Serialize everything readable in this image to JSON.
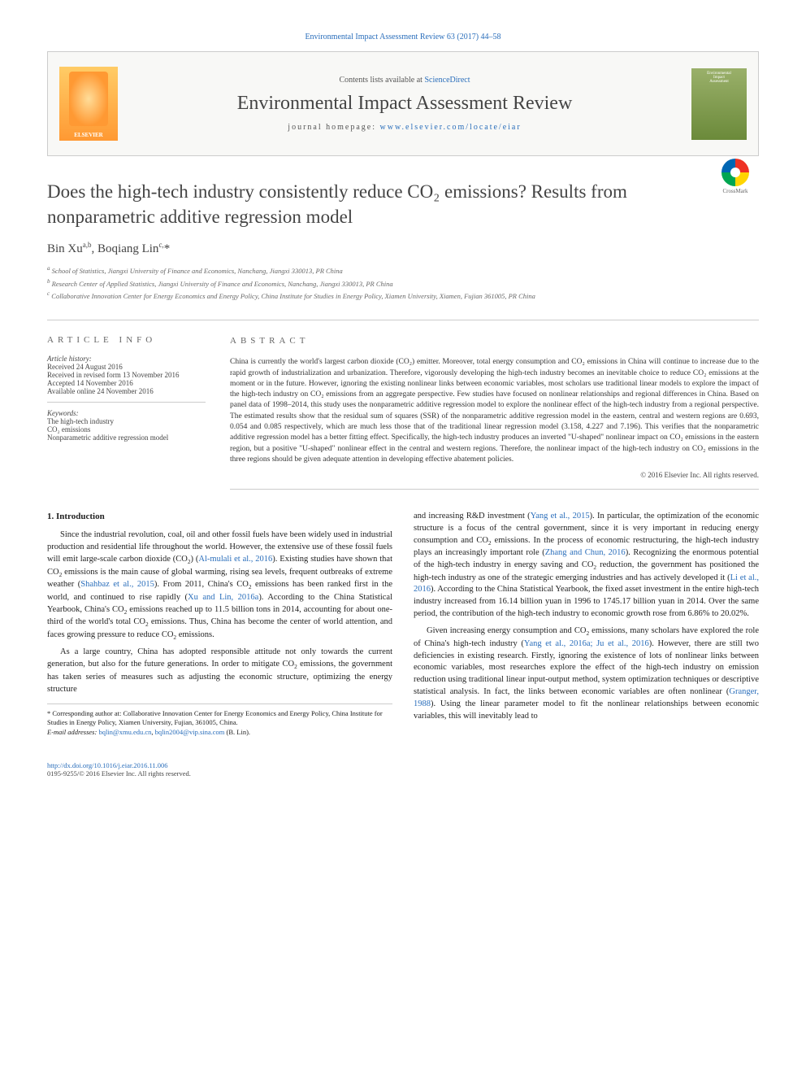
{
  "top_link": "Environmental Impact Assessment Review 63 (2017) 44–58",
  "header": {
    "contents_prefix": "Contents lists available at ",
    "contents_link": "ScienceDirect",
    "journal_name": "Environmental Impact Assessment Review",
    "homepage_prefix": "journal homepage: ",
    "homepage_link": "www.elsevier.com/locate/eiar",
    "publisher_logo_label": "ELSEVIER",
    "cover_line1": "Environmental",
    "cover_line2": "Impact",
    "cover_line3": "Assessment"
  },
  "article": {
    "title": "Does the high-tech industry consistently reduce CO₂ emissions? Results from nonparametric additive regression model",
    "authors_html": "Bin Xu",
    "author1_sup": "a,b",
    "author2": ", Boqiang Lin",
    "author2_sup": "c,",
    "author2_star": "*",
    "affiliations": {
      "a": "School of Statistics, Jiangxi University of Finance and Economics, Nanchang, Jiangxi 330013, PR China",
      "b": "Research Center of Applied Statistics, Jiangxi University of Finance and Economics, Nanchang, Jiangxi 330013, PR China",
      "c": "Collaborative Innovation Center for Energy Economics and Energy Policy, China Institute for Studies in Energy Policy, Xiamen University, Xiamen, Fujian 361005, PR China"
    }
  },
  "info": {
    "heading": "article info",
    "history_label": "Article history:",
    "received": "Received 24 August 2016",
    "revised": "Received in revised form 13 November 2016",
    "accepted": "Accepted 14 November 2016",
    "online": "Available online 24 November 2016",
    "keywords_label": "Keywords:",
    "kw1": "The high-tech industry",
    "kw2": "CO₂ emissions",
    "kw3": "Nonparametric additive regression model"
  },
  "abstract": {
    "heading": "abstract",
    "text": "China is currently the world's largest carbon dioxide (CO₂) emitter. Moreover, total energy consumption and CO₂ emissions in China will continue to increase due to the rapid growth of industrialization and urbanization. Therefore, vigorously developing the high-tech industry becomes an inevitable choice to reduce CO₂ emissions at the moment or in the future. However, ignoring the existing nonlinear links between economic variables, most scholars use traditional linear models to explore the impact of the high-tech industry on CO₂ emissions from an aggregate perspective. Few studies have focused on nonlinear relationships and regional differences in China. Based on panel data of 1998–2014, this study uses the nonparametric additive regression model to explore the nonlinear effect of the high-tech industry from a regional perspective. The estimated results show that the residual sum of squares (SSR) of the nonparametric additive regression model in the eastern, central and western regions are 0.693, 0.054 and 0.085 respectively, which are much less those that of the traditional linear regression model (3.158, 4.227 and 7.196). This verifies that the nonparametric additive regression model has a better fitting effect. Specifically, the high-tech industry produces an inverted \"U-shaped\" nonlinear impact on CO₂ emissions in the eastern region, but a positive \"U-shaped\" nonlinear effect in the central and western regions. Therefore, the nonlinear impact of the high-tech industry on CO₂ emissions in the three regions should be given adequate attention in developing effective abatement policies.",
    "copyright": "© 2016 Elsevier Inc. All rights reserved."
  },
  "body": {
    "section_heading": "1. Introduction",
    "left_p1": "Since the industrial revolution, coal, oil and other fossil fuels have been widely used in industrial production and residential life throughout the world. However, the extensive use of these fossil fuels will emit large-scale carbon dioxide (CO₂) (Al-mulali et al., 2016). Existing studies have shown that CO₂ emissions is the main cause of global warming, rising sea levels, frequent outbreaks of extreme weather (Shahbaz et al., 2015). From 2011, China's CO₂ emissions has been ranked first in the world, and continued to rise rapidly (Xu and Lin, 2016a). According to the China Statistical Yearbook, China's CO₂ emissions reached up to 11.5 billion tons in 2014, accounting for about one-third of the world's total CO₂ emissions. Thus, China has become the center of world attention, and faces growing pressure to reduce CO₂ emissions.",
    "left_p2": "As a large country, China has adopted responsible attitude not only towards the current generation, but also for the future generations. In order to mitigate CO₂ emissions, the government has taken series of measures such as adjusting the economic structure, optimizing the energy structure",
    "right_p1": "and increasing R&D investment (Yang et al., 2015). In particular, the optimization of the economic structure is a focus of the central government, since it is very important in reducing energy consumption and CO₂ emissions. In the process of economic restructuring, the high-tech industry plays an increasingly important role (Zhang and Chun, 2016). Recognizing the enormous potential of the high-tech industry in energy saving and CO₂ reduction, the government has positioned the high-tech industry as one of the strategic emerging industries and has actively developed it (Li et al., 2016). According to the China Statistical Yearbook, the fixed asset investment in the entire high-tech industry increased from 16.14 billion yuan in 1996 to 1745.17 billion yuan in 2014. Over the same period, the contribution of the high-tech industry to economic growth rose from 6.86% to 20.02%.",
    "right_p2": "Given increasing energy consumption and CO₂ emissions, many scholars have explored the role of China's high-tech industry (Yang et al., 2016a; Ju et al., 2016). However, there are still two deficiencies in existing research. Firstly, ignoring the existence of lots of nonlinear links between economic variables, most researches explore the effect of the high-tech industry on emission reduction using traditional linear input-output method, system optimization techniques or descriptive statistical analysis. In fact, the links between economic variables are often nonlinear (Granger, 1988). Using the linear parameter model to fit the nonlinear relationships between economic variables, this will inevitably lead to"
  },
  "footnote": {
    "corr_label": "* Corresponding author at: Collaborative Innovation Center for Energy Economics and Energy Policy, China Institute for Studies in Energy Policy, Xiamen University, Fujian, 361005, China.",
    "email_label": "E-mail addresses:",
    "email1": "bqlin@xmu.edu.cn",
    "email2": "bqlin2004@vip.sina.com",
    "email_suffix": " (B. Lin)."
  },
  "bottom": {
    "doi": "http://dx.doi.org/10.1016/j.eiar.2016.11.006",
    "issn": "0195-9255/© 2016 Elsevier Inc. All rights reserved."
  },
  "crossmark": {
    "label": "CrossMark"
  },
  "refs": {
    "almulali": "Al-mulali et al., 2016",
    "shahbaz": "Shahbaz et al., 2015",
    "xulin": "Xu and Lin, 2016a",
    "yang2015": "Yang et al., 2015",
    "zhangchun": "Zhang and Chun, 2016",
    "li2016": "Li et al., 2016",
    "yang2016": "Yang et al., 2016a; Ju et al., 2016",
    "granger": "Granger, 1988"
  },
  "colors": {
    "link": "#2a6ebb",
    "text": "#333333",
    "muted": "#666666",
    "border": "#cccccc"
  }
}
